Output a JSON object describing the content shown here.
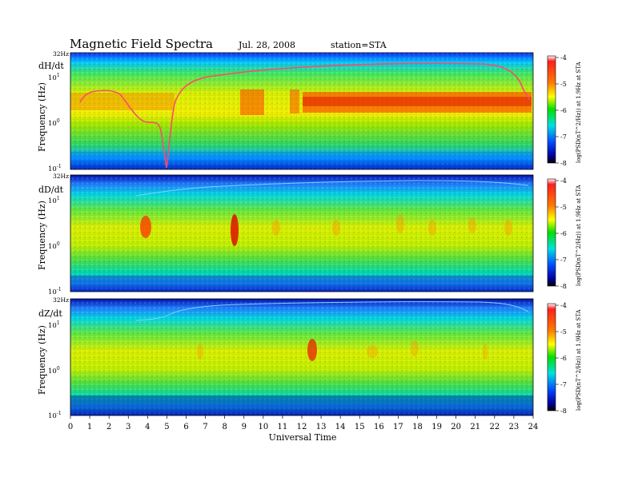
{
  "header": {
    "title": "Magnetic  Field  Spectra",
    "date": "Jul.  28, 2008",
    "station": "station=STA"
  },
  "chart_data": [
    {
      "type": "heatmap",
      "panel_label": "dH/dt",
      "ylabel": "Frequency  (Hz)",
      "xlabel": "",
      "y_scale": "log",
      "ylim_hz": [
        0.1,
        32
      ],
      "y_ticks": [
        "32Hz",
        "10^1",
        "10^0",
        "10^-1"
      ],
      "xlim": [
        0,
        24
      ],
      "colorbar": {
        "label": "log(PSD(nT^2/Hz)) at 1.9Hz at STA",
        "ticks": [
          -4,
          -5,
          -6,
          -7,
          -8
        ]
      },
      "features": [
        {
          "kind": "rising-line",
          "desc": "sharp artificial line rising from ~0.12 Hz at 5 UT to ~20 Hz by 11 UT then flat"
        },
        {
          "kind": "enhancement",
          "from_ut": 12,
          "to_ut": 24,
          "freq_hz": [
            1.5,
            3.5
          ]
        }
      ]
    },
    {
      "type": "heatmap",
      "panel_label": "dD/dt",
      "ylabel": "Frequency  (Hz)",
      "xlabel": "",
      "y_scale": "log",
      "ylim_hz": [
        0.1,
        32
      ],
      "y_ticks": [
        "32Hz",
        "10^1",
        "10^0",
        "10^-1"
      ],
      "xlim": [
        0,
        24
      ],
      "colorbar": {
        "label": "log(PSD(nT^2/Hz)) at 1.9Hz at STA",
        "ticks": [
          -4,
          -5,
          -6,
          -7,
          -8
        ]
      },
      "features": [
        {
          "kind": "burst",
          "at_ut": 4.0,
          "freq_hz": 2.5
        },
        {
          "kind": "burst",
          "at_ut": 8.6,
          "freq_hz": 2.0
        }
      ]
    },
    {
      "type": "heatmap",
      "panel_label": "dZ/dt",
      "ylabel": "Frequency  (Hz)",
      "xlabel": "Universal Time",
      "y_scale": "log",
      "ylim_hz": [
        0.1,
        32
      ],
      "y_ticks": [
        "32Hz",
        "10^1",
        "10^0",
        "10^-1"
      ],
      "xlim": [
        0,
        24
      ],
      "x_ticks": [
        0,
        1,
        2,
        3,
        4,
        5,
        6,
        7,
        8,
        9,
        10,
        11,
        12,
        13,
        14,
        15,
        16,
        17,
        18,
        19,
        20,
        21,
        22,
        23,
        24
      ],
      "colorbar": {
        "label": "log(PSD(nT^2/Hz)) at 1.9Hz at STA",
        "ticks": [
          -4,
          -5,
          -6,
          -7,
          -8
        ]
      },
      "features": [
        {
          "kind": "burst",
          "at_ut": 12.5,
          "freq_hz": 2.5
        }
      ]
    }
  ]
}
